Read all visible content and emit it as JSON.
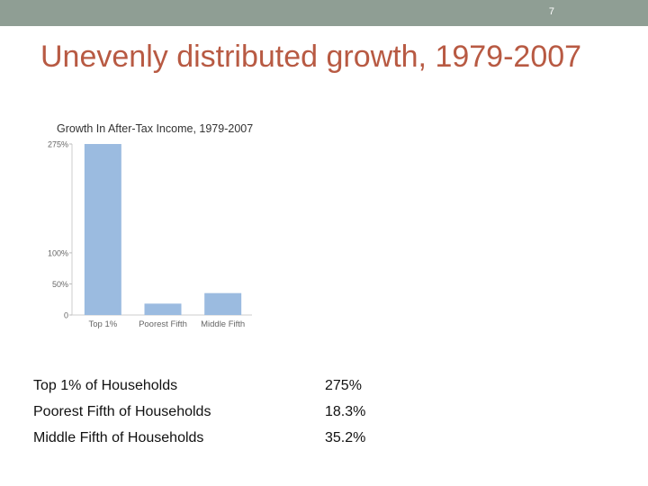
{
  "slide": {
    "number": "7",
    "title": "Unevenly distributed growth, 1979-2007"
  },
  "chart_data": {
    "type": "bar",
    "title": "Growth In After-Tax Income, 1979-2007",
    "categories": [
      "Top 1%",
      "Poorest Fifth",
      "Middle Fifth"
    ],
    "values": [
      275,
      18.3,
      35.2
    ],
    "yticks": [
      {
        "value": 0,
        "label": "0"
      },
      {
        "value": 50,
        "label": "50%"
      },
      {
        "value": 100,
        "label": "100%"
      },
      {
        "value": 275,
        "label": "275%"
      }
    ],
    "ylim": [
      0,
      275
    ],
    "xlabel": "",
    "ylabel": "",
    "grid": false,
    "bar_color": "#9bbbe0"
  },
  "table": {
    "rows": [
      {
        "label": "Top 1% of Households",
        "value": "275%"
      },
      {
        "label": "Poorest Fifth of Households",
        "value": "18.3%"
      },
      {
        "label": "Middle Fifth of Households",
        "value": "35.2%"
      }
    ]
  }
}
